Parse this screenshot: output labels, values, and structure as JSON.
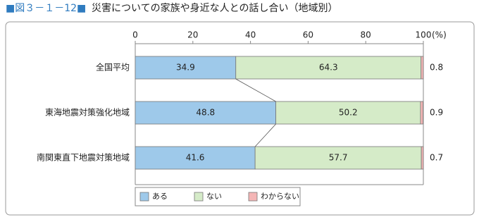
{
  "chart_data": {
    "type": "stacked-bar",
    "figure_label": "■図３－１－12■",
    "title": "災害についての家族や身近な人との話し合い（地域別）",
    "unit": "(%)",
    "categories": [
      "全国平均",
      "東海地震対策強化地域",
      "南関東直下地震対策地域"
    ],
    "series": [
      {
        "name": "ある",
        "color": "#9ec9ea",
        "values": [
          34.9,
          48.8,
          41.6
        ]
      },
      {
        "name": "ない",
        "color": "#d5ebc8",
        "values": [
          64.3,
          50.2,
          57.7
        ]
      },
      {
        "name": "わからない",
        "color": "#f4b6b6",
        "values": [
          0.8,
          0.9,
          0.7
        ]
      }
    ],
    "xlim": [
      0,
      100
    ],
    "xticks": [
      0,
      20,
      40,
      60,
      80,
      100
    ]
  }
}
